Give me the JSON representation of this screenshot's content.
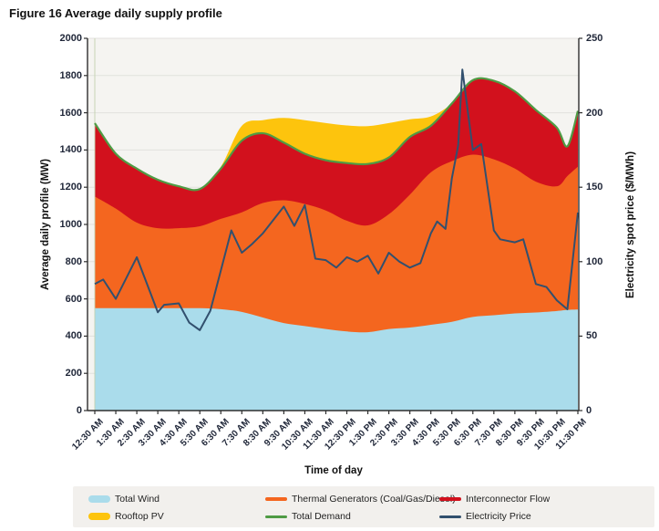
{
  "figure": {
    "title": "Figure 16 Average daily supply profile"
  },
  "axes": {
    "y_left": {
      "title": "Average daily profile (MW)",
      "min": 0,
      "max": 2000,
      "ticks": [
        0,
        200,
        400,
        600,
        800,
        1000,
        1200,
        1400,
        1600,
        1800,
        2000
      ]
    },
    "y_right": {
      "title": "Electricity spot price ($/MWh)",
      "min": 0,
      "max": 250,
      "ticks": [
        0,
        50,
        100,
        150,
        200,
        250
      ]
    },
    "x": {
      "title": "Time of day"
    }
  },
  "legend": [
    {
      "label": "Total Wind",
      "color": "#AADCEB",
      "type": "area"
    },
    {
      "label": "Thermal Generators (Coal/Gas/Diesel)",
      "color": "#F4661F",
      "type": "thickline"
    },
    {
      "label": "Interconnector Flow",
      "color": "#D2111D",
      "type": "thickline"
    },
    {
      "label": "Rooftop PV",
      "color": "#FDC40D",
      "type": "area"
    },
    {
      "label": "Total Demand",
      "color": "#4F9B44",
      "type": "line"
    },
    {
      "label": "Electricity Price",
      "color": "#32506E",
      "type": "line"
    }
  ],
  "colors": {
    "wind": "#AADCEB",
    "thermal": "#F4661F",
    "interconnector": "#D2111D",
    "rooftop_pv": "#FDC40D",
    "total_demand": "#4F9B44",
    "price": "#32506E",
    "plot_bg": "#F5F4F1",
    "grid": "#E2E1DD",
    "spine": "#2E2E2E",
    "left_edge_line": "#C3D2AF"
  },
  "chart_data": {
    "type": "area",
    "subtype": "stacked-area-with-lines",
    "x_labels": [
      "12:30 AM",
      "1:30 AM",
      "2:30 AM",
      "3:30 AM",
      "4:30 AM",
      "5:30 AM",
      "6:30 AM",
      "7:30 AM",
      "8:30 AM",
      "9:30 AM",
      "10:30 AM",
      "11:30 AM",
      "12:30 PM",
      "1:30 PM",
      "2:30 PM",
      "3:30 PM",
      "4:30 PM",
      "5:30 PM",
      "6:30 PM",
      "7:30 PM",
      "8:30 PM",
      "9:30 PM",
      "10:30 PM",
      "11:30 PM"
    ],
    "x_hours": [
      0,
      1,
      2,
      3,
      4,
      5,
      6,
      7,
      8,
      9,
      10,
      11,
      12,
      13,
      14,
      15,
      16,
      17,
      18,
      19,
      20,
      21,
      22,
      22.5,
      23
    ],
    "y_left_range": [
      0,
      2000
    ],
    "y_right_range": [
      0,
      250
    ],
    "grid": "horizontal",
    "legend_position": "bottom",
    "series": [
      {
        "name": "Total Wind",
        "type": "area",
        "stacked": true,
        "axis": "left",
        "values": [
          550,
          550,
          550,
          550,
          550,
          550,
          545,
          530,
          500,
          470,
          454,
          438,
          425,
          421,
          438,
          446,
          461,
          477,
          503,
          512,
          522,
          527,
          535,
          541,
          543
        ]
      },
      {
        "name": "Thermal Generators (Coal/Gas/Diesel)",
        "type": "area",
        "stacked": true,
        "axis": "left",
        "values": [
          600,
          535,
          460,
          430,
          430,
          440,
          485,
          535,
          615,
          660,
          656,
          637,
          595,
          574,
          617,
          714,
          819,
          863,
          872,
          838,
          778,
          703,
          670,
          719,
          767
        ]
      },
      {
        "name": "Interconnector Flow",
        "type": "area",
        "stacked": true,
        "axis": "left",
        "values": [
          394,
          295,
          290,
          260,
          225,
          200,
          270,
          385,
          375,
          310,
          270,
          270,
          310,
          330,
          305,
          310,
          250,
          310,
          400,
          422,
          415,
          385,
          315,
          160,
          300
        ]
      },
      {
        "name": "Rooftop PV",
        "type": "area",
        "stacked": true,
        "axis": "left",
        "values": [
          0,
          0,
          0,
          0,
          0,
          0,
          10,
          80,
          70,
          132,
          180,
          200,
          202,
          203,
          185,
          95,
          50,
          0,
          0,
          0,
          0,
          0,
          0,
          0,
          0
        ]
      },
      {
        "name": "Total Demand",
        "type": "line",
        "axis": "left",
        "values": [
          1544,
          1380,
          1300,
          1240,
          1205,
          1190,
          1300,
          1450,
          1490,
          1440,
          1380,
          1345,
          1330,
          1325,
          1360,
          1470,
          1530,
          1650,
          1775,
          1772,
          1715,
          1615,
          1520,
          1420,
          1610
        ]
      }
    ],
    "price_series": {
      "name": "Electricity Price",
      "type": "line",
      "axis": "right",
      "points": [
        [
          0,
          85
        ],
        [
          0.4,
          88
        ],
        [
          1,
          75
        ],
        [
          2,
          103
        ],
        [
          3,
          66
        ],
        [
          3.3,
          71
        ],
        [
          4,
          72
        ],
        [
          4.5,
          59
        ],
        [
          5,
          54
        ],
        [
          5.5,
          67
        ],
        [
          6.5,
          121
        ],
        [
          7,
          106
        ],
        [
          7.5,
          112
        ],
        [
          8,
          119
        ],
        [
          9,
          137
        ],
        [
          9.5,
          124
        ],
        [
          10,
          138
        ],
        [
          10.5,
          102
        ],
        [
          11,
          101
        ],
        [
          11.5,
          96
        ],
        [
          12,
          103
        ],
        [
          12.5,
          100
        ],
        [
          13,
          104
        ],
        [
          13.5,
          92
        ],
        [
          14,
          106
        ],
        [
          14.5,
          100
        ],
        [
          15,
          96
        ],
        [
          15.5,
          99
        ],
        [
          16,
          119
        ],
        [
          16.3,
          127
        ],
        [
          16.7,
          122
        ],
        [
          17,
          156
        ],
        [
          17.3,
          178
        ],
        [
          17.5,
          229
        ],
        [
          18,
          175
        ],
        [
          18.4,
          179
        ],
        [
          19,
          121
        ],
        [
          19.3,
          115
        ],
        [
          20,
          113
        ],
        [
          20.4,
          115
        ],
        [
          21,
          85
        ],
        [
          21.5,
          83
        ],
        [
          22,
          74
        ],
        [
          22.5,
          68
        ],
        [
          23,
          133
        ]
      ]
    }
  }
}
